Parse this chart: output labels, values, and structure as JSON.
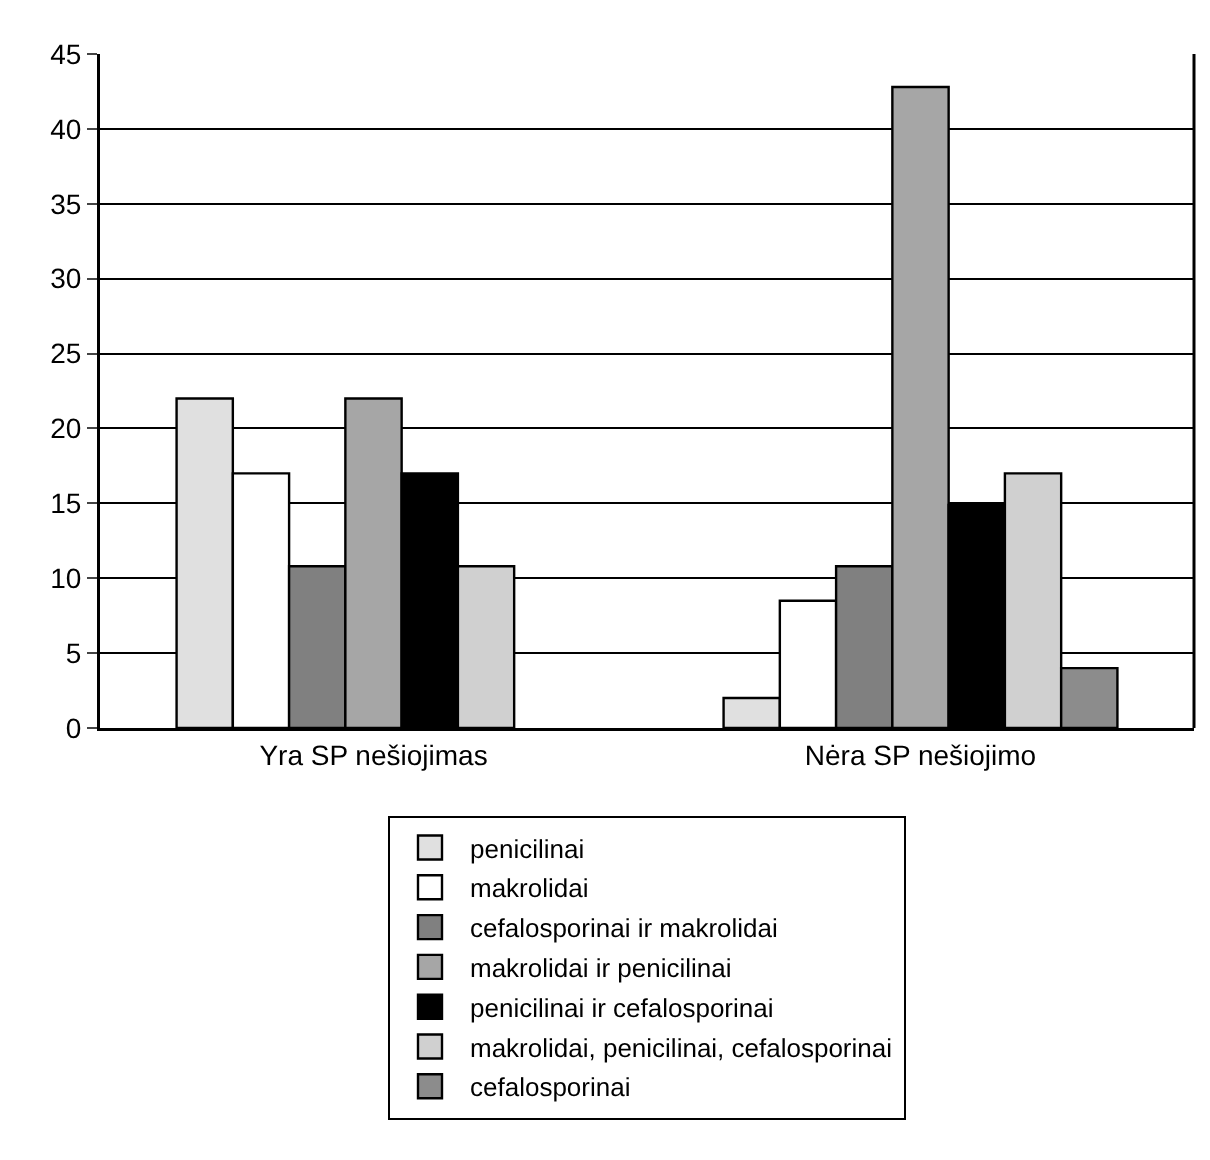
{
  "chart_data": {
    "type": "bar",
    "categories": [
      "Yra SP nešiojimas",
      "Nėra SP nešiojimo"
    ],
    "series": [
      {
        "name": "penicilinai",
        "color": "#e0e0e0",
        "values": [
          22,
          2
        ]
      },
      {
        "name": "makrolidai",
        "color": "#ffffff",
        "values": [
          17,
          8.5
        ]
      },
      {
        "name": "cefalosporinai ir makrolidai",
        "color": "#808080",
        "values": [
          10.8,
          10.8
        ]
      },
      {
        "name": "makrolidai ir penicilinai",
        "color": "#a6a6a6",
        "values": [
          22,
          42.8
        ]
      },
      {
        "name": "penicilinai ir cefalosporinai",
        "color": "#000000",
        "values": [
          17,
          14.9
        ]
      },
      {
        "name": "makrolidai, penicilinai, cefalosporinai",
        "color": "#d0d0d0",
        "values": [
          10.8,
          17
        ]
      },
      {
        "name": "cefalosporinai",
        "color": "#8c8c8c",
        "values": [
          null,
          4
        ]
      }
    ],
    "ylim": [
      0,
      45
    ],
    "yticks": [
      0,
      5,
      10,
      15,
      20,
      25,
      30,
      35,
      40,
      45
    ],
    "grid": "y",
    "legend": "bottom"
  }
}
